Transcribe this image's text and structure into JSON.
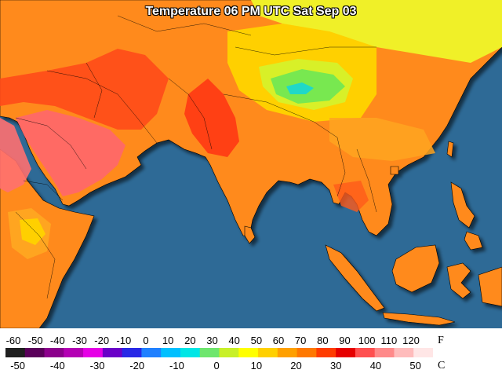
{
  "title": "Temperature 06 PM UTC Sat Sep 03",
  "legend": {
    "fahrenheit_unit": "F",
    "celsius_unit": "C",
    "fahrenheit_ticks": [
      "-60",
      "-50",
      "-40",
      "-30",
      "-20",
      "-10",
      "0",
      "10",
      "20",
      "30",
      "40",
      "50",
      "60",
      "70",
      "80",
      "90",
      "100",
      "110",
      "120"
    ],
    "celsius_ticks": [
      "-50",
      "-40",
      "-30",
      "-20",
      "-10",
      "0",
      "10",
      "20",
      "30",
      "40",
      "50"
    ],
    "fahrenheit_range": [
      -60,
      120
    ],
    "colors": [
      "#202020",
      "#5a005a",
      "#8c008c",
      "#b400b4",
      "#e600e6",
      "#6a00c8",
      "#2828e6",
      "#2080ff",
      "#00c0ff",
      "#00e6e6",
      "#6ee66e",
      "#c8f028",
      "#ffff00",
      "#ffd000",
      "#ffa000",
      "#ff7800",
      "#ff3c00",
      "#e60000",
      "#ff5050",
      "#ff8a8a",
      "#ffbcbc",
      "#ffe6e6"
    ]
  },
  "map_colors": {
    "ocean": "#2e6a96",
    "land_hot": "#ff7a1a",
    "land_very_hot": "#ff3c14",
    "land_extreme": "#ff6060",
    "land_warm": "#ffa520",
    "land_mild": "#ffd000",
    "land_cool": "#e8f020",
    "land_cold": "#70e850",
    "land_cold_core": "#20d8c8"
  }
}
